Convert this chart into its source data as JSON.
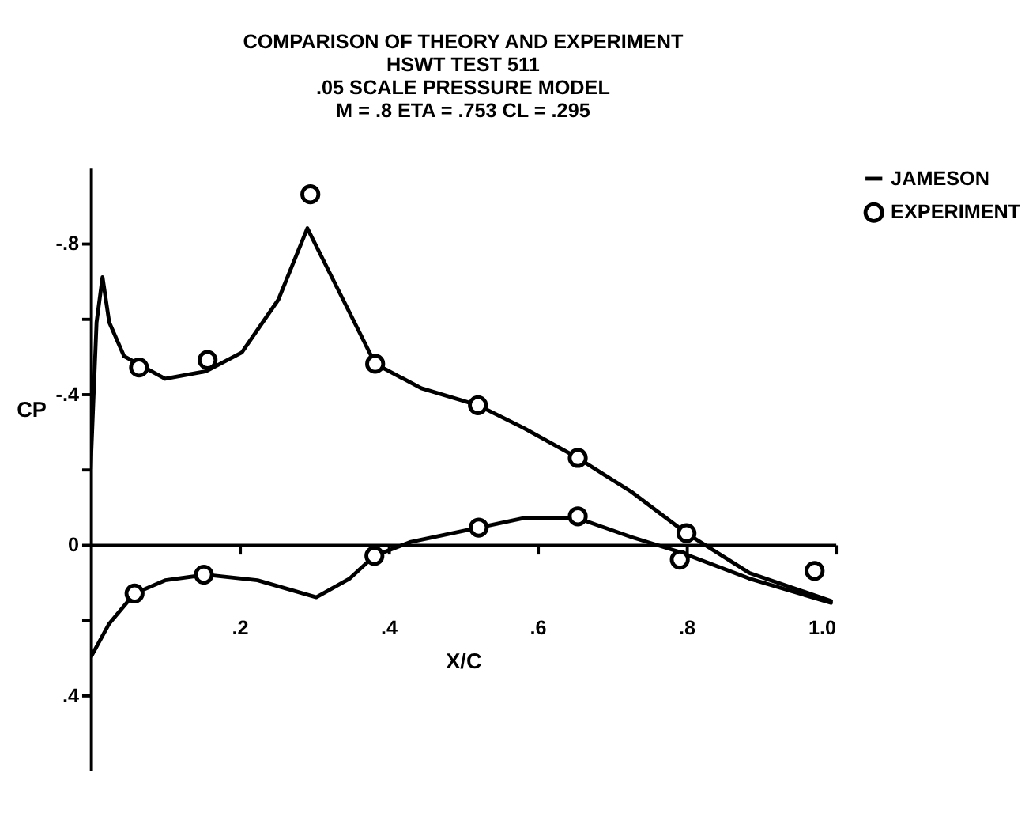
{
  "chart_data": {
    "type": "line",
    "title": [
      "COMPARISON OF THEORY AND EXPERIMENT",
      "HSWT TEST 511",
      ".05 SCALE PRESSURE MODEL",
      "M = .8      ETA = .753      CL = .295"
    ],
    "xlabel": "X/C",
    "ylabel": "CP",
    "xlim": [
      0,
      1.0
    ],
    "ylim": [
      0.6,
      -1.0
    ],
    "xticks": [
      {
        "value": 0.2,
        "label": ".2"
      },
      {
        "value": 0.4,
        "label": ".4"
      },
      {
        "value": 0.6,
        "label": ".6"
      },
      {
        "value": 0.8,
        "label": ".8"
      },
      {
        "value": 1.0,
        "label": "1.0"
      }
    ],
    "yticks": [
      {
        "value": -0.8,
        "label": "-.8"
      },
      {
        "value": -0.6,
        "label": null
      },
      {
        "value": -0.4,
        "label": "-.4"
      },
      {
        "value": -0.2,
        "label": null
      },
      0,
      {
        "value": 0.2,
        "label": null
      },
      {
        "value": 0.4,
        "label": ".4"
      }
    ],
    "legend": "top right",
    "line_style": "solid",
    "series": [
      {
        "name": "JAMESON",
        "color": "#000000",
        "x": [
          0,
          0.008,
          0.016,
          0.025,
          0.045,
          0.1,
          0.155,
          0.203,
          0.252,
          0.291,
          0.334,
          0.382,
          0.444,
          0.52,
          0.581,
          0.654,
          0.726,
          0.8,
          0.884,
          0.994
        ],
        "values": [
          -0.2,
          -0.59,
          -0.71,
          -0.59,
          -0.5,
          -0.44,
          -0.46,
          -0.51,
          -0.65,
          -0.84,
          -0.67,
          -0.48,
          -0.415,
          -0.37,
          -0.31,
          -0.23,
          -0.14,
          -0.03,
          0.075,
          0.15
        ]
      },
      {
        "color": "#000000",
        "x": [
          0,
          0.025,
          0.059,
          0.1,
          0.155,
          0.224,
          0.303,
          0.348,
          0.381,
          0.43,
          0.521,
          0.581,
          0.654,
          0.726,
          0.791,
          0.884,
          0.994
        ],
        "values": [
          0.3,
          0.21,
          0.13,
          0.095,
          0.08,
          0.095,
          0.14,
          0.09,
          0.03,
          -0.007,
          -0.045,
          -0.07,
          -0.07,
          -0.02,
          0.02,
          0.09,
          0.155
        ]
      },
      {
        "name": "EXPERIMENT",
        "type": "scatter",
        "marker": "circle",
        "color": "#000000",
        "x": [
          0.065,
          0.157,
          0.295,
          0.382,
          0.52,
          0.654,
          0.8,
          0.059,
          0.152,
          0.381,
          0.521,
          0.654,
          0.791,
          0.972
        ],
        "values": [
          -0.47,
          -0.49,
          -0.93,
          -0.48,
          -0.37,
          -0.23,
          -0.03,
          0.13,
          0.08,
          0.03,
          -0.045,
          -0.075,
          0.04,
          0.07
        ]
      }
    ]
  }
}
